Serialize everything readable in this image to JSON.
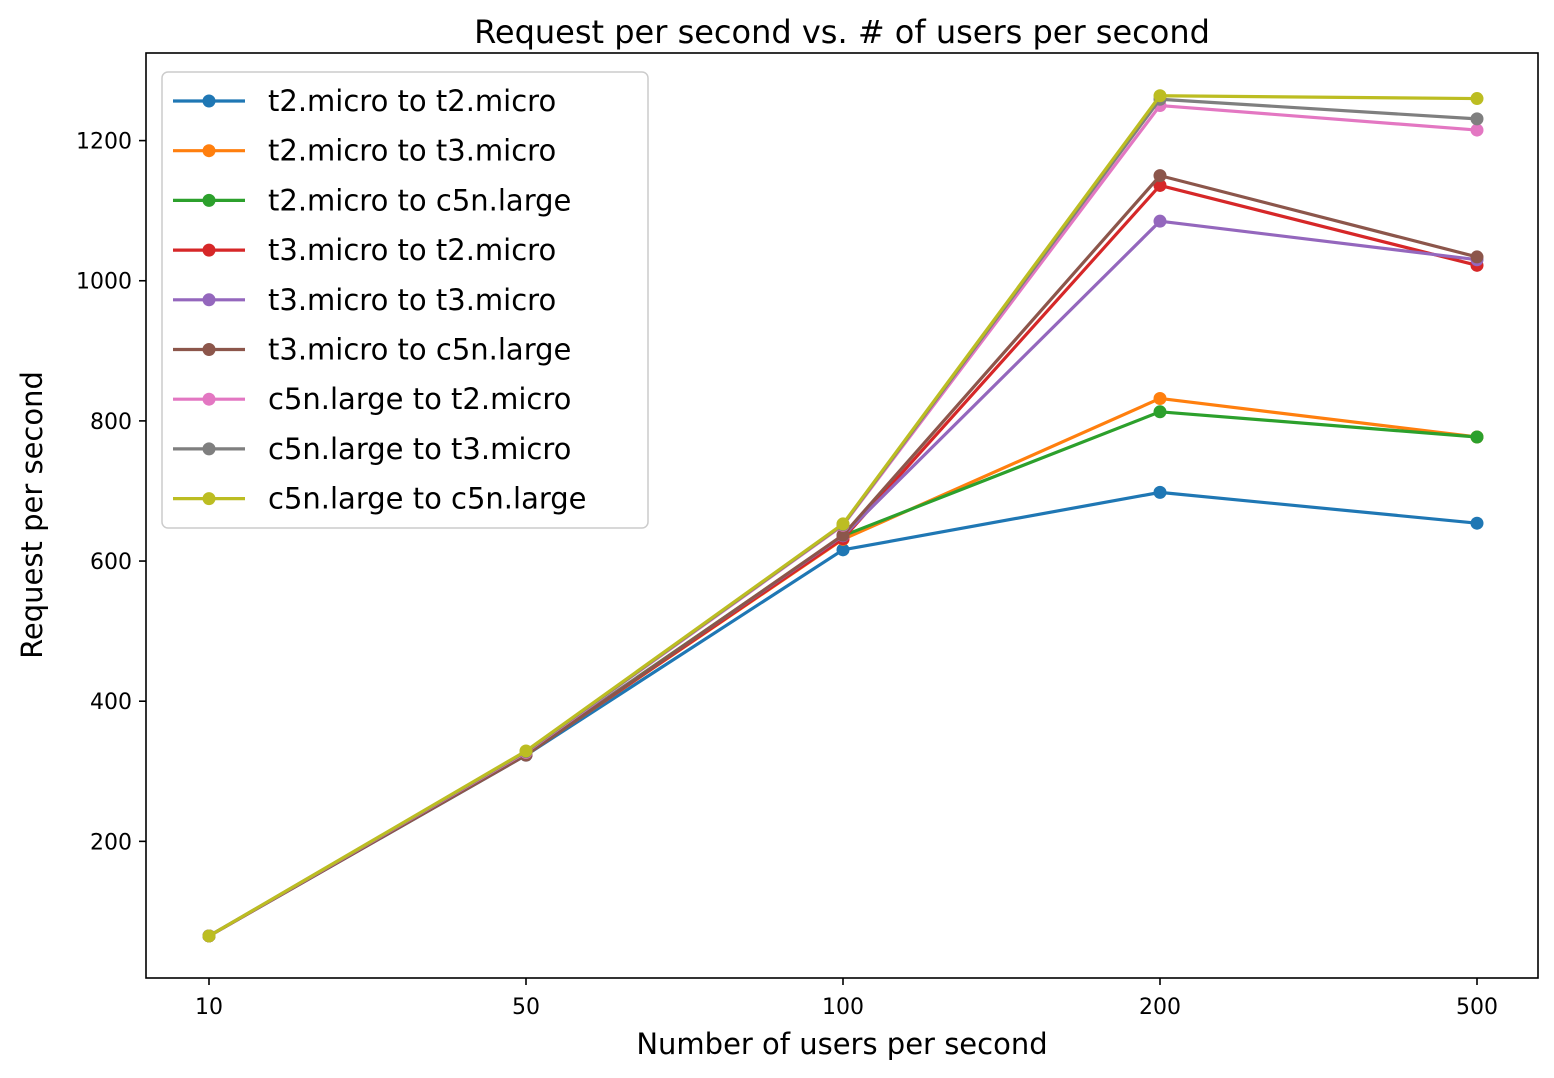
{
  "chart_data": {
    "type": "line",
    "title": "Request per second vs. # of users per second",
    "xlabel": "Number of users per second",
    "ylabel": "Request per second",
    "categories": [
      "10",
      "50",
      "100",
      "200",
      "500"
    ],
    "ylim": [
      5,
      1325
    ],
    "yticks": [
      200,
      400,
      600,
      800,
      1000,
      1200
    ],
    "grid": false,
    "legend_position": "top-left",
    "series": [
      {
        "name": "t2.micro to t2.micro",
        "color": "#1f77b4",
        "values": [
          65,
          323,
          616,
          698,
          654
        ]
      },
      {
        "name": "t2.micro to t3.micro",
        "color": "#ff7f0e",
        "values": [
          65,
          324,
          631,
          832,
          777
        ]
      },
      {
        "name": "t2.micro to c5n.large",
        "color": "#2ca02c",
        "values": [
          65,
          325,
          636,
          813,
          777
        ]
      },
      {
        "name": "t3.micro to t2.micro",
        "color": "#d62728",
        "values": [
          65,
          324,
          632,
          1136,
          1022
        ]
      },
      {
        "name": "t3.micro to t3.micro",
        "color": "#9467bd",
        "values": [
          65,
          324,
          636,
          1085,
          1030
        ]
      },
      {
        "name": "t3.micro to c5n.large",
        "color": "#8c564b",
        "values": [
          65,
          323,
          637,
          1150,
          1034
        ]
      },
      {
        "name": "c5n.large to t2.micro",
        "color": "#e377c2",
        "values": [
          65,
          327,
          651,
          1250,
          1215
        ]
      },
      {
        "name": "c5n.large to t3.micro",
        "color": "#7f7f7f",
        "values": [
          65,
          328,
          652,
          1259,
          1231
        ]
      },
      {
        "name": "c5n.large to c5n.large",
        "color": "#bcbd22",
        "values": [
          65,
          329,
          653,
          1264,
          1260
        ]
      }
    ]
  }
}
